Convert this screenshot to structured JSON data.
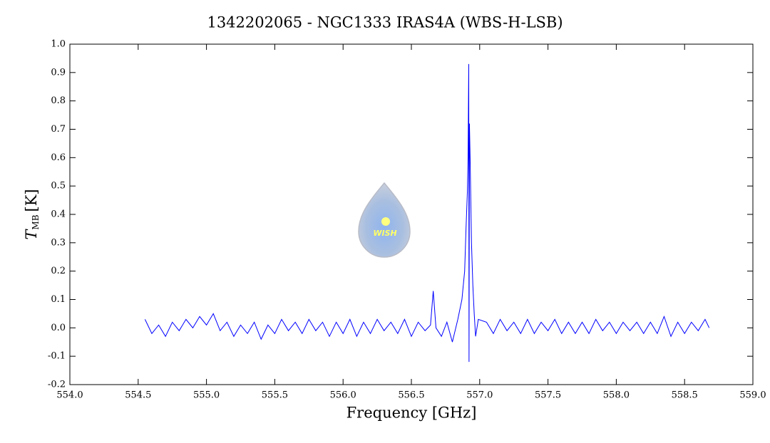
{
  "chart_data": {
    "type": "line",
    "title": "1342202065 - NGC1333 IRAS4A (WBS-H-LSB)",
    "x_label": "Frequency [GHz]",
    "y_label": {
      "symbol": "T",
      "subscript": "MB",
      "unit": "[K]"
    },
    "logo_text": "WISH",
    "x": [
      554.55,
      554.6,
      554.65,
      554.7,
      554.75,
      554.8,
      554.85,
      554.9,
      554.95,
      555.0,
      555.05,
      555.1,
      555.15,
      555.2,
      555.25,
      555.3,
      555.35,
      555.4,
      555.45,
      555.5,
      555.55,
      555.6,
      555.65,
      555.7,
      555.75,
      555.8,
      555.85,
      555.9,
      555.95,
      556.0,
      556.05,
      556.1,
      556.15,
      556.2,
      556.25,
      556.3,
      556.35,
      556.4,
      556.45,
      556.5,
      556.55,
      556.6,
      556.64,
      556.66,
      556.68,
      556.72,
      556.76,
      556.8,
      556.84,
      556.87,
      556.89,
      556.9,
      556.91,
      556.915,
      556.92,
      556.922,
      556.925,
      556.93,
      556.935,
      556.94,
      556.95,
      556.96,
      556.97,
      556.99,
      557.05,
      557.1,
      557.15,
      557.2,
      557.25,
      557.3,
      557.35,
      557.4,
      557.45,
      557.5,
      557.55,
      557.6,
      557.65,
      557.7,
      557.75,
      557.8,
      557.85,
      557.9,
      557.95,
      558.0,
      558.05,
      558.1,
      558.15,
      558.2,
      558.25,
      558.3,
      558.35,
      558.4,
      558.45,
      558.5,
      558.55,
      558.6,
      558.65,
      558.68
    ],
    "series": [
      {
        "name": "WBS-H-LSB",
        "color": "#0000ff",
        "values": [
          0.03,
          -0.02,
          0.01,
          -0.03,
          0.02,
          -0.01,
          0.03,
          0.0,
          0.04,
          0.01,
          0.05,
          -0.01,
          0.02,
          -0.03,
          0.01,
          -0.02,
          0.02,
          -0.04,
          0.01,
          -0.02,
          0.03,
          -0.01,
          0.02,
          -0.02,
          0.03,
          -0.01,
          0.02,
          -0.03,
          0.02,
          -0.02,
          0.03,
          -0.03,
          0.02,
          -0.02,
          0.03,
          -0.01,
          0.02,
          -0.02,
          0.03,
          -0.03,
          0.02,
          -0.01,
          0.01,
          0.13,
          0.0,
          -0.03,
          0.02,
          -0.05,
          0.03,
          0.1,
          0.2,
          0.35,
          0.48,
          0.6,
          0.93,
          -0.12,
          0.72,
          0.6,
          0.45,
          0.3,
          0.15,
          0.05,
          -0.03,
          0.03,
          0.02,
          -0.02,
          0.03,
          -0.01,
          0.02,
          -0.02,
          0.03,
          -0.02,
          0.02,
          -0.01,
          0.03,
          -0.02,
          0.02,
          -0.02,
          0.02,
          -0.02,
          0.03,
          -0.01,
          0.02,
          -0.02,
          0.02,
          -0.01,
          0.02,
          -0.02,
          0.02,
          -0.02,
          0.04,
          -0.03,
          0.02,
          -0.02,
          0.02,
          -0.01,
          0.03,
          0.0
        ]
      }
    ],
    "xlim": [
      554.0,
      559.0
    ],
    "ylim": [
      -0.2,
      1.0
    ],
    "xticks": [
      {
        "value": 554,
        "label": "554.0"
      },
      554.5,
      {
        "value": 555,
        "label": "555.0"
      },
      555.5,
      {
        "value": 556,
        "label": "556.0"
      },
      556.5,
      {
        "value": 557,
        "label": "557.0"
      },
      557.5,
      {
        "value": 558,
        "label": "558.0"
      },
      558.5,
      {
        "value": 559,
        "label": "559.0"
      }
    ],
    "yticks": [
      -0.2,
      -0.1,
      {
        "value": 0,
        "label": "0.0"
      },
      0.1,
      0.2,
      0.3,
      0.4,
      0.5,
      0.6,
      0.7,
      0.8,
      0.9,
      {
        "value": 1,
        "label": "1.0"
      }
    ]
  }
}
